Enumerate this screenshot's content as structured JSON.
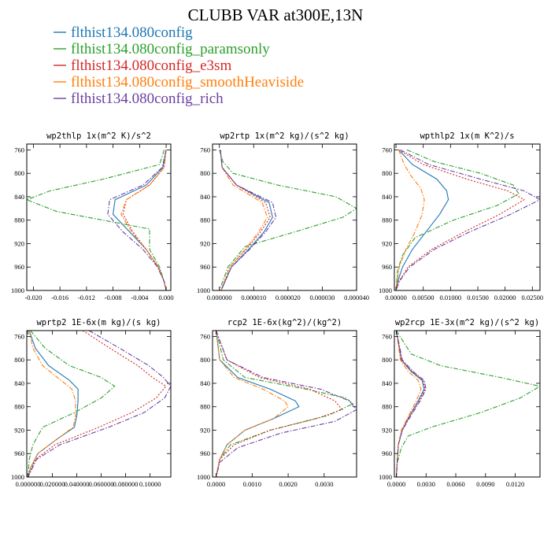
{
  "figure_title": "CLUBB VAR at300E,13N",
  "legend": [
    {
      "name": "flthist134.080config",
      "color": "#1f77b4",
      "dash": "solid"
    },
    {
      "name": "flthist134.080config_paramsonly",
      "color": "#2ca02c",
      "dash": "dashdot"
    },
    {
      "name": "flthist134.080config_e3sm",
      "color": "#d62728",
      "dash": "dot"
    },
    {
      "name": "flthist134.080config_smoothHeaviside",
      "color": "#ff7f0e",
      "dash": "dashdot"
    },
    {
      "name": "flthist134.080config_rich",
      "color": "#6b3fa0",
      "dash": "dashdot"
    }
  ],
  "chart_data": [
    {
      "type": "line",
      "title": "wp2thlp  1x(m^2 K)/s^2",
      "xlim": [
        -0.021,
        0.0007
      ],
      "ylim": [
        1000,
        750
      ],
      "xticks": [
        "-0.020",
        "-0.016",
        "-0.012",
        "-0.008",
        "-0.004",
        "0.000"
      ],
      "xtick_values": [
        -0.02,
        -0.016,
        -0.012,
        -0.008,
        -0.004,
        0.0
      ],
      "yticks": [
        "760",
        "800",
        "840",
        "880",
        "920",
        "960",
        "1000"
      ],
      "ytick_values": [
        760,
        800,
        840,
        880,
        920,
        960,
        1000
      ],
      "series": [
        {
          "y": [
            760,
            790,
            820,
            845,
            870,
            900,
            930,
            960,
            985,
            1000
          ],
          "x": [
            0.0,
            -0.0005,
            -0.003,
            -0.0077,
            -0.008,
            -0.0055,
            -0.003,
            -0.0012,
            -0.0003,
            0.0
          ]
        },
        {
          "y": [
            760,
            785,
            810,
            830,
            845,
            865,
            895,
            930,
            960,
            985,
            1000
          ],
          "x": [
            -0.0003,
            -0.001,
            -0.0095,
            -0.0175,
            -0.021,
            -0.0165,
            -0.0025,
            -0.0025,
            -0.001,
            -0.0003,
            0.0
          ]
        },
        {
          "y": [
            760,
            790,
            820,
            845,
            870,
            900,
            930,
            960,
            985,
            1000
          ],
          "x": [
            0.0,
            -0.0003,
            -0.0025,
            -0.006,
            -0.0065,
            -0.005,
            -0.003,
            -0.0012,
            -0.0003,
            0.0
          ]
        },
        {
          "y": [
            760,
            790,
            820,
            845,
            870,
            900,
            930,
            960,
            985,
            1000
          ],
          "x": [
            0.0,
            -0.0003,
            -0.0025,
            -0.006,
            -0.0068,
            -0.0052,
            -0.003,
            -0.0012,
            -0.0003,
            0.0
          ]
        },
        {
          "y": [
            760,
            790,
            820,
            845,
            870,
            900,
            930,
            960,
            985,
            1000
          ],
          "x": [
            0.0,
            -0.0006,
            -0.0035,
            -0.0085,
            -0.0088,
            -0.0065,
            -0.0035,
            -0.0013,
            -0.0003,
            0.0
          ]
        }
      ]
    },
    {
      "type": "line",
      "title": "wp2rtp  1x(m^2 kg)/(s^2 kg)",
      "xlim": [
        -2e-06,
        4e-05
      ],
      "ylim": [
        1000,
        750
      ],
      "xticks": [
        "0.000000",
        "0.000010",
        "0.000020",
        "0.000030",
        "0.000040"
      ],
      "xtick_values": [
        0.0,
        1e-05,
        2e-05,
        3e-05,
        4e-05
      ],
      "yticks": [
        "760",
        "800",
        "840",
        "880",
        "920",
        "960",
        "1000"
      ],
      "ytick_values": [
        760,
        800,
        840,
        880,
        920,
        960,
        1000
      ],
      "series": [
        {
          "y": [
            760,
            790,
            820,
            850,
            875,
            900,
            930,
            960,
            1000
          ],
          "x": [
            3e-07,
            8e-07,
            5e-06,
            1.45e-05,
            1.55e-05,
            1.3e-05,
            8.5e-06,
            3.5e-06,
            5e-07
          ]
        },
        {
          "y": [
            760,
            780,
            800,
            820,
            840,
            860,
            875,
            900,
            925,
            960,
            1000
          ],
          "x": [
            0.0,
            1e-06,
            4e-06,
            1.7e-05,
            3.4e-05,
            4e-05,
            3.6e-05,
            2.2e-05,
            7.5e-06,
            2.5e-06,
            0.0
          ]
        },
        {
          "y": [
            760,
            790,
            820,
            850,
            875,
            900,
            930,
            960,
            1000
          ],
          "x": [
            3e-07,
            8e-07,
            5e-06,
            1.35e-05,
            1.48e-05,
            1.2e-05,
            7.8e-06,
            3e-06,
            5e-07
          ]
        },
        {
          "y": [
            760,
            790,
            820,
            850,
            875,
            900,
            930,
            960,
            1000
          ],
          "x": [
            3e-07,
            8e-07,
            4e-06,
            1.25e-05,
            1.4e-05,
            1.15e-05,
            7.5e-06,
            3e-06,
            5e-07
          ]
        },
        {
          "y": [
            760,
            790,
            820,
            850,
            875,
            900,
            930,
            960,
            1000
          ],
          "x": [
            3e-07,
            8e-07,
            5e-06,
            1.55e-05,
            1.65e-05,
            1.35e-05,
            8.8e-06,
            3.5e-06,
            5e-07
          ]
        }
      ]
    },
    {
      "type": "line",
      "title": "wpthlp2  1x(m K^2)/s",
      "xlim": [
        -0.0003,
        0.0264
      ],
      "ylim": [
        1000,
        750
      ],
      "xticks": [
        "0.00000",
        "0.00500",
        "0.01000",
        "0.01500",
        "0.02000",
        "0.02500"
      ],
      "xtick_values": [
        0.0,
        0.005,
        0.01,
        0.015,
        0.02,
        0.025
      ],
      "yticks": [
        "760",
        "800",
        "840",
        "880",
        "920",
        "960",
        "1000"
      ],
      "ytick_values": [
        760,
        800,
        840,
        880,
        920,
        960,
        1000
      ],
      "series": [
        {
          "y": [
            760,
            785,
            810,
            830,
            845,
            870,
            900,
            930,
            960,
            985,
            1000
          ],
          "x": [
            0.0005,
            0.003,
            0.0075,
            0.0093,
            0.0096,
            0.008,
            0.0055,
            0.003,
            0.0012,
            0.0003,
            0.0
          ]
        },
        {
          "y": [
            760,
            780,
            800,
            820,
            835,
            855,
            880,
            910,
            940,
            965,
            1000
          ],
          "x": [
            0.002,
            0.007,
            0.0155,
            0.0215,
            0.0225,
            0.0185,
            0.0105,
            0.0035,
            0.0012,
            0.0003,
            0.0
          ]
        },
        {
          "y": [
            760,
            785,
            810,
            830,
            845,
            870,
            900,
            930,
            960,
            985,
            1000
          ],
          "x": [
            0.0005,
            0.005,
            0.013,
            0.0205,
            0.0235,
            0.019,
            0.0125,
            0.0065,
            0.0022,
            0.0005,
            0.0
          ]
        },
        {
          "y": [
            760,
            785,
            805,
            825,
            845,
            870,
            900,
            930,
            960,
            985,
            1000
          ],
          "x": [
            0.0005,
            0.0015,
            0.0028,
            0.0045,
            0.0052,
            0.0048,
            0.0035,
            0.0018,
            0.0006,
            0.0002,
            0.0
          ]
        },
        {
          "y": [
            760,
            785,
            810,
            830,
            845,
            870,
            900,
            930,
            960,
            985,
            1000
          ],
          "x": [
            0.0008,
            0.006,
            0.0155,
            0.0235,
            0.0264,
            0.021,
            0.0135,
            0.007,
            0.0025,
            0.0006,
            0.0
          ]
        }
      ]
    },
    {
      "type": "line",
      "title": "wprtp2  1E-6x(m kg)/(s kg)",
      "xlim": [
        -0.001,
        0.117
      ],
      "ylim": [
        1000,
        750
      ],
      "xticks": [
        "0.000000",
        "0.020000",
        "0.040000",
        "0.060000",
        "0.080000",
        "0.10000"
      ],
      "xtick_values": [
        0.0,
        0.02,
        0.04,
        0.06,
        0.08,
        0.1
      ],
      "yticks": [
        "760",
        "800",
        "840",
        "880",
        "920",
        "960",
        "1000"
      ],
      "ytick_values": [
        760,
        800,
        840,
        880,
        920,
        960,
        1000
      ],
      "series": [
        {
          "y": [
            750,
            780,
            810,
            835,
            850,
            870,
            895,
            915,
            935,
            960,
            985,
            1000
          ],
          "x": [
            0.001,
            0.006,
            0.017,
            0.034,
            0.041,
            0.041,
            0.04,
            0.038,
            0.024,
            0.008,
            0.002,
            0.0
          ]
        },
        {
          "y": [
            750,
            780,
            810,
            830,
            845,
            865,
            890,
            915,
            945,
            970,
            1000
          ],
          "x": [
            0.002,
            0.014,
            0.034,
            0.06,
            0.071,
            0.06,
            0.038,
            0.012,
            0.004,
            0.001,
            0.0
          ]
        },
        {
          "y": [
            750,
            780,
            810,
            830,
            845,
            865,
            890,
            915,
            945,
            970,
            1000
          ],
          "x": [
            0.045,
            0.067,
            0.09,
            0.102,
            0.113,
            0.105,
            0.085,
            0.058,
            0.022,
            0.006,
            0.0
          ]
        },
        {
          "y": [
            750,
            780,
            810,
            835,
            850,
            870,
            895,
            915,
            935,
            960,
            985,
            1000
          ],
          "x": [
            0.001,
            0.004,
            0.012,
            0.027,
            0.036,
            0.039,
            0.039,
            0.037,
            0.024,
            0.008,
            0.002,
            0.0
          ]
        },
        {
          "y": [
            750,
            780,
            810,
            830,
            845,
            865,
            890,
            915,
            945,
            970,
            1000
          ],
          "x": [
            0.05,
            0.075,
            0.099,
            0.111,
            0.117,
            0.112,
            0.095,
            0.066,
            0.026,
            0.007,
            0.0
          ]
        }
      ]
    },
    {
      "type": "line",
      "title": "rcp2  1E-6x(kg^2)/(kg^2)",
      "xlim": [
        -0.0001,
        0.0039
      ],
      "ylim": [
        1000,
        750
      ],
      "xticks": [
        "0.0000",
        "0.0010",
        "0.0020",
        "0.0030"
      ],
      "xtick_values": [
        0.0,
        0.001,
        0.002,
        0.003
      ],
      "yticks": [
        "760",
        "800",
        "840",
        "880",
        "920",
        "960",
        "1000"
      ],
      "ytick_values": [
        760,
        800,
        840,
        880,
        920,
        960,
        1000
      ],
      "series": [
        {
          "y": [
            750,
            800,
            830,
            850,
            870,
            880,
            900,
            920,
            945,
            970,
            1000
          ],
          "x": [
            0.0,
            0.0001,
            0.0006,
            0.0015,
            0.0022,
            0.0023,
            0.0016,
            0.0008,
            0.0003,
            0.0001,
            0.0
          ]
        },
        {
          "y": [
            750,
            800,
            830,
            850,
            865,
            875,
            895,
            920,
            945,
            970,
            1000
          ],
          "x": [
            0.0,
            0.0002,
            0.0008,
            0.0025,
            0.0036,
            0.0038,
            0.0031,
            0.0015,
            0.0004,
            0.0001,
            0.0
          ]
        },
        {
          "y": [
            750,
            800,
            830,
            850,
            870,
            885,
            900,
            920,
            945,
            970,
            1000
          ],
          "x": [
            0.0,
            0.0003,
            0.0012,
            0.0026,
            0.0033,
            0.0035,
            0.0028,
            0.0015,
            0.0005,
            0.0001,
            0.0
          ]
        },
        {
          "y": [
            750,
            800,
            830,
            850,
            870,
            880,
            900,
            920,
            945,
            970,
            1000
          ],
          "x": [
            0.0,
            0.0001,
            0.0005,
            0.0013,
            0.0019,
            0.002,
            0.0016,
            0.0008,
            0.0003,
            0.0001,
            0.0
          ]
        },
        {
          "y": [
            750,
            800,
            830,
            850,
            870,
            885,
            905,
            925,
            950,
            975,
            1000
          ],
          "x": [
            0.0,
            0.0003,
            0.0013,
            0.0029,
            0.0037,
            0.0039,
            0.0033,
            0.0018,
            0.0006,
            0.0001,
            0.0
          ]
        }
      ]
    },
    {
      "type": "line",
      "title": "wp2rcp  1E-3x(m^2 kg)/(s^2 kg)",
      "xlim": [
        -0.0002,
        0.0145
      ],
      "ylim": [
        1000,
        750
      ],
      "xticks": [
        "0.0000",
        "0.0030",
        "0.0060",
        "0.0090",
        "0.0120"
      ],
      "xtick_values": [
        0.0,
        0.003,
        0.006,
        0.009,
        0.012
      ],
      "yticks": [
        "760",
        "800",
        "840",
        "880",
        "920",
        "960",
        "1000"
      ],
      "ytick_values": [
        760,
        800,
        840,
        880,
        920,
        960,
        1000
      ],
      "series": [
        {
          "y": [
            750,
            800,
            820,
            835,
            850,
            870,
            900,
            920,
            945,
            970,
            1000
          ],
          "x": [
            0.0,
            0.0005,
            0.0015,
            0.0026,
            0.0028,
            0.0022,
            0.0012,
            0.0006,
            0.0002,
            0.0001,
            0.0
          ]
        },
        {
          "y": [
            750,
            790,
            810,
            830,
            845,
            865,
            890,
            915,
            930,
            950,
            975,
            1000
          ],
          "x": [
            0.0,
            0.0015,
            0.0045,
            0.0105,
            0.0145,
            0.0125,
            0.0085,
            0.0035,
            0.0012,
            0.0005,
            0.0001,
            0.0
          ]
        },
        {
          "y": [
            750,
            800,
            820,
            835,
            850,
            870,
            900,
            920,
            945,
            970,
            1000
          ],
          "x": [
            0.0,
            0.0005,
            0.0016,
            0.0027,
            0.0029,
            0.0023,
            0.0012,
            0.0006,
            0.0002,
            0.0001,
            0.0
          ]
        },
        {
          "y": [
            750,
            800,
            820,
            835,
            850,
            870,
            900,
            920,
            945,
            970,
            1000
          ],
          "x": [
            0.0,
            0.0004,
            0.0012,
            0.0022,
            0.0025,
            0.002,
            0.0011,
            0.0005,
            0.0002,
            0.0001,
            0.0
          ]
        },
        {
          "y": [
            750,
            800,
            820,
            835,
            850,
            870,
            900,
            920,
            945,
            970,
            1000
          ],
          "x": [
            0.0,
            0.0006,
            0.0017,
            0.0028,
            0.003,
            0.0024,
            0.0013,
            0.0006,
            0.0002,
            0.0001,
            0.0
          ]
        }
      ]
    }
  ]
}
